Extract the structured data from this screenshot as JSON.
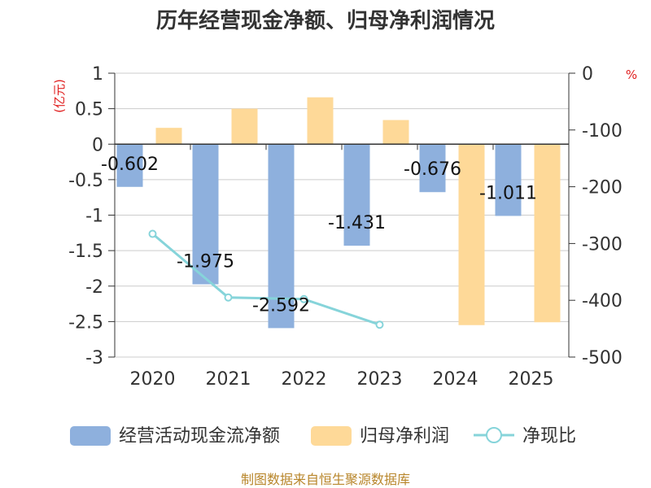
{
  "chart_data": {
    "type": "bar",
    "title": "历年经营现金净额、归母净利润情况",
    "categories": [
      "2020",
      "2021",
      "2022",
      "2023",
      "2024",
      "2025"
    ],
    "left_axis": {
      "unit": "(亿元)",
      "ylim": [
        -3,
        1
      ],
      "ticks": [
        1,
        0.5,
        0,
        -0.5,
        -1,
        -1.5,
        -2,
        -2.5,
        -3
      ],
      "tick_labels": [
        "1",
        "0.5",
        "0",
        "-0.5",
        "-1",
        "-1.5",
        "-2",
        "-2.5",
        "-3"
      ]
    },
    "right_axis": {
      "unit": "%",
      "ylim": [
        -500,
        0
      ],
      "ticks": [
        0,
        -100,
        -200,
        -300,
        -400,
        -500
      ],
      "tick_labels": [
        "0",
        "-100",
        "-200",
        "-300",
        "-400",
        "-500"
      ]
    },
    "series": [
      {
        "name": "经营活动现金流净额",
        "kind": "bar",
        "axis": "left",
        "color": "#8eb0dd",
        "values": [
          -0.602,
          -1.975,
          -2.592,
          -1.431,
          -0.676,
          -1.011
        ],
        "labels": [
          "-0.602",
          "-1.975",
          "-2.592",
          "-1.431",
          "-0.676",
          "-1.011"
        ]
      },
      {
        "name": "归母净利润",
        "kind": "bar",
        "axis": "left",
        "color": "#fed998",
        "values": [
          0.23,
          0.5,
          0.66,
          0.34,
          -2.55,
          -2.51
        ]
      },
      {
        "name": "净现比",
        "kind": "line",
        "axis": "right",
        "color": "#86d4da",
        "values": [
          -283,
          -395,
          -398,
          -443,
          null,
          null
        ]
      }
    ],
    "grid": true,
    "legend_position": "bottom"
  },
  "source": "制图数据来自恒生聚源数据库"
}
